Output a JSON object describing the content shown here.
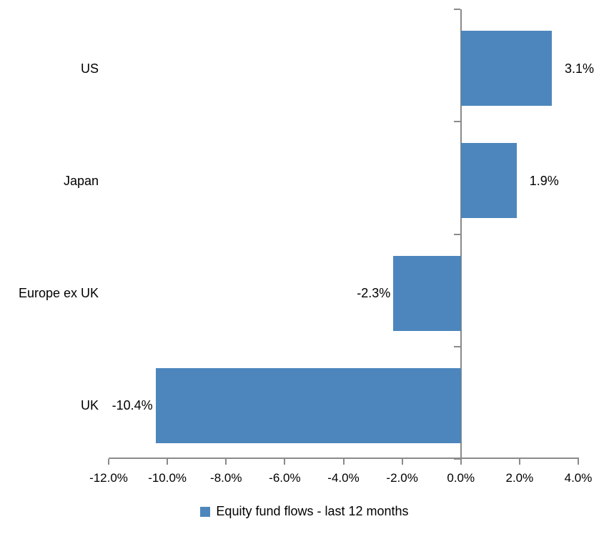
{
  "chart_data": {
    "type": "bar",
    "orientation": "horizontal",
    "title": "",
    "xlabel": "",
    "ylabel": "",
    "categories": [
      "US",
      "Japan",
      "Europe ex UK",
      "UK"
    ],
    "series": [
      {
        "name": "Equity fund flows - last 12 months",
        "values": [
          3.1,
          1.9,
          -2.3,
          -10.4
        ],
        "data_labels": [
          "3.1%",
          "1.9%",
          "-2.3%",
          "-10.4%"
        ]
      }
    ],
    "xlim": [
      -12,
      4
    ],
    "x_tick_step": 2,
    "x_tick_labels": [
      "-12.0%",
      "-10.0%",
      "-8.0%",
      "-6.0%",
      "-4.0%",
      "-2.0%",
      "0.0%",
      "2.0%",
      "4.0%"
    ],
    "grid": false,
    "legend_position": "bottom-center",
    "colors": {
      "bar_fill": "#4D86BC",
      "axis_line": "#8A8A8A",
      "text": "#000000",
      "background": "#FFFFFF"
    }
  },
  "legend": {
    "label": "Equity fund flows - last 12 months"
  }
}
